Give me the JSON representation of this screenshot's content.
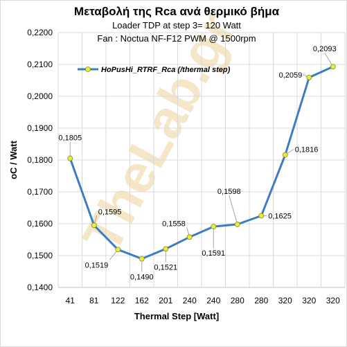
{
  "chart_data": {
    "type": "line",
    "title": "Μεταβολή της Rca ανά θερμικό βήμα",
    "subtitle_lines": [
      "Loader TDP at step 3= 120 Watt",
      "Fan : Noctua NF-F12 PWM @ 1500rpm"
    ],
    "xlabel": "Thermal Step [Watt]",
    "ylabel": "oC / Watt",
    "categories": [
      "41",
      "81",
      "122",
      "162",
      "201",
      "240",
      "240",
      "280",
      "280",
      "320",
      "320",
      "320"
    ],
    "series": [
      {
        "name": "HoPusHi_RTRF_Rca (/thermal step)",
        "values": [
          0.1805,
          0.1595,
          0.1519,
          0.149,
          0.1521,
          0.1558,
          0.1591,
          0.1598,
          0.1625,
          0.1816,
          0.2059,
          0.2093
        ],
        "value_labels": [
          "0,1805",
          "0,1595",
          "0,1519",
          "0,1490",
          "0,1521",
          "0,1558",
          "0,1591",
          "0,1598",
          "0,1625",
          "0,1816",
          "0,2059",
          "0,2093"
        ],
        "color": "#3b7dc4",
        "marker_color": "#e8ec3c"
      }
    ],
    "ylim": [
      0.14,
      0.22
    ],
    "yticks": [
      0.14,
      0.15,
      0.16,
      0.17,
      0.18,
      0.19,
      0.2,
      0.21,
      0.22
    ],
    "ytick_labels": [
      "0,1400",
      "0,1500",
      "0,1600",
      "0,1700",
      "0,1800",
      "0,1900",
      "0,2000",
      "0,2100",
      "0,2200"
    ],
    "grid": true,
    "legend_position": "top-left",
    "watermark": "TheLab.gr"
  },
  "colors": {
    "grid": "#d9d9d9",
    "axis": "#bfbfbf",
    "leader": "#a6a6a6"
  }
}
